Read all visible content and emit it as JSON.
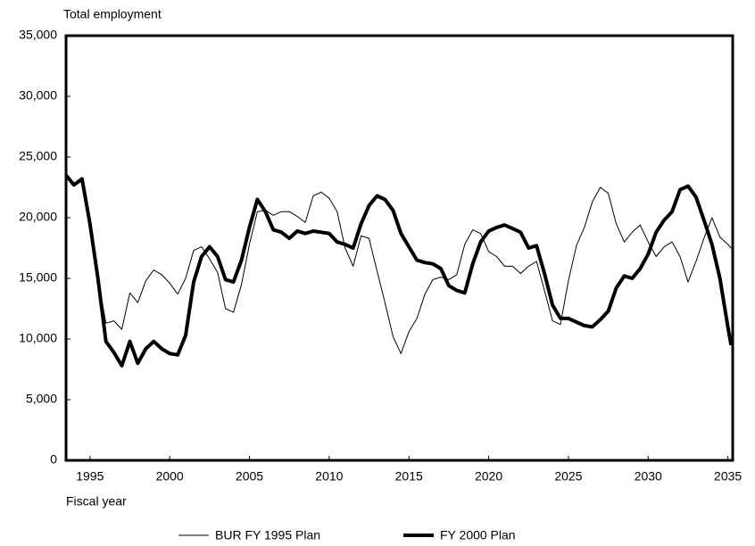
{
  "chart_data": {
    "type": "line",
    "y_axis_label": "Total employment",
    "x_axis_label": "Fiscal year",
    "x": [
      1993.5,
      1994,
      1994.5,
      1995,
      1995.5,
      1996,
      1996.5,
      1997,
      1997.5,
      1998,
      1998.5,
      1999,
      1999.5,
      2000,
      2000.5,
      2001,
      2001.5,
      2002,
      2002.5,
      2003,
      2003.5,
      2004,
      2004.5,
      2005,
      2005.5,
      2006,
      2006.5,
      2007,
      2007.5,
      2008,
      2008.5,
      2009,
      2009.5,
      2010,
      2010.5,
      2011,
      2011.5,
      2012,
      2012.5,
      2013,
      2013.5,
      2014,
      2014.5,
      2015,
      2015.5,
      2016,
      2016.5,
      2017,
      2017.5,
      2018,
      2018.5,
      2019,
      2019.5,
      2020,
      2020.5,
      2021,
      2021.5,
      2022,
      2022.5,
      2023,
      2023.5,
      2024,
      2024.5,
      2025,
      2025.5,
      2026,
      2026.5,
      2027,
      2027.5,
      2028,
      2028.5,
      2029,
      2029.5,
      2030,
      2030.5,
      2031,
      2031.5,
      2032,
      2032.5,
      2033,
      2033.5,
      2034,
      2034.5,
      2035,
      2035.2
    ],
    "series": [
      {
        "name": "BUR FY 1995 Plan",
        "color": "#000000",
        "line_width": 1,
        "values": [
          23500,
          22700,
          23200,
          19500,
          15000,
          11300,
          11500,
          10800,
          13800,
          13000,
          14800,
          15700,
          15300,
          14600,
          13700,
          15000,
          17300,
          17600,
          16600,
          15500,
          12500,
          12200,
          14500,
          17800,
          20500,
          20600,
          20200,
          20500,
          20500,
          20100,
          19600,
          21800,
          22100,
          21600,
          20500,
          17500,
          16000,
          18500,
          18300,
          15600,
          13000,
          10200,
          8800,
          10600,
          11700,
          13700,
          14900,
          15100,
          14900,
          15300,
          17800,
          19000,
          18700,
          17200,
          16800,
          16000,
          16000,
          15400,
          16000,
          16400,
          14000,
          11500,
          11200,
          14800,
          17700,
          19200,
          21300,
          22500,
          22000,
          19500,
          18000,
          18800,
          19400,
          18000,
          16800,
          17600,
          18000,
          16800,
          14700,
          16400,
          18300,
          20000,
          18400,
          17800,
          17500
        ]
      },
      {
        "name": "FY 2000 Plan",
        "color": "#000000",
        "line_width": 4,
        "values": [
          23500,
          22700,
          23200,
          19500,
          15000,
          9800,
          8900,
          7800,
          9800,
          8000,
          9200,
          9800,
          9200,
          8800,
          8700,
          10300,
          14700,
          16800,
          17600,
          16800,
          14900,
          14700,
          16500,
          19200,
          21500,
          20500,
          19000,
          18800,
          18300,
          18900,
          18700,
          18900,
          18800,
          18700,
          18000,
          17800,
          17500,
          19500,
          21000,
          21800,
          21500,
          20600,
          18700,
          17600,
          16500,
          16300,
          16200,
          15800,
          14400,
          14000,
          13800,
          16200,
          18000,
          18900,
          19200,
          19400,
          19100,
          18800,
          17500,
          17700,
          15400,
          12800,
          11700,
          11700,
          11400,
          11100,
          11000,
          11600,
          12300,
          14200,
          15200,
          15000,
          15800,
          17000,
          18800,
          19800,
          20500,
          22300,
          22600,
          21700,
          19800,
          17800,
          15000,
          11000,
          9500
        ]
      }
    ],
    "xlim": [
      1993.5,
      2035.3
    ],
    "xticks": [
      1995,
      2000,
      2005,
      2010,
      2015,
      2020,
      2025,
      2030,
      2035
    ],
    "ylim": [
      0,
      35000
    ],
    "yticks": [
      0,
      {
        "value": 5000,
        "label": "5,000"
      },
      {
        "value": 10000,
        "label": "10,000"
      },
      {
        "value": 15000,
        "label": "15,000"
      },
      {
        "value": 20000,
        "label": "20,000"
      },
      {
        "value": 25000,
        "label": "25,000"
      },
      {
        "value": 30000,
        "label": "30,000"
      },
      {
        "value": 35000,
        "label": "35,000"
      }
    ],
    "grid": false,
    "legend": "bottom"
  }
}
